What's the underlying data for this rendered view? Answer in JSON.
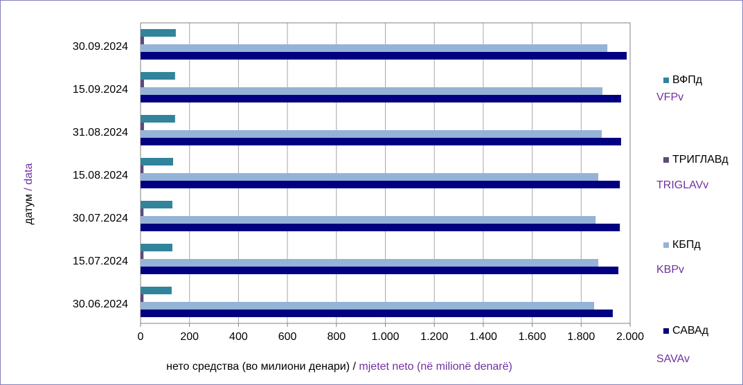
{
  "chart_data": {
    "type": "hbar",
    "categories": [
      "30.06.2024",
      "15.07.2024",
      "30.07.2024",
      "15.08.2024",
      "31.08.2024",
      "15.09.2024",
      "30.09.2024"
    ],
    "series": [
      {
        "name": "ВФПд",
        "subname": "VFPv",
        "color": "#31849b",
        "values": [
          127,
          130,
          130,
          133,
          141,
          141,
          144
        ]
      },
      {
        "name": "ТРИГЛАВд",
        "subname": "TRIGLAVv",
        "color": "#60497a",
        "values": [
          12,
          12,
          12,
          12,
          14,
          14,
          14
        ]
      },
      {
        "name": "КБПд",
        "subname": "KBPv",
        "color": "#95b3d7",
        "values": [
          1853,
          1870,
          1859,
          1870,
          1884,
          1887,
          1907
        ]
      },
      {
        "name": "САВАд",
        "subname": "SAVAv",
        "color": "#000080",
        "values": [
          1929,
          1952,
          1958,
          1958,
          1963,
          1963,
          1986
        ]
      }
    ],
    "xlim": [
      0,
      2000
    ],
    "xticks": [
      0,
      200,
      400,
      600,
      800,
      {
        "value": 1000,
        "label": "1.000"
      },
      {
        "value": 1200,
        "label": "1.200"
      },
      {
        "value": 1400,
        "label": "1.400"
      },
      {
        "value": 1600,
        "label": "1.600"
      },
      {
        "value": 1800,
        "label": "1.800"
      },
      {
        "value": 2000,
        "label": "2.000"
      }
    ],
    "xlabel": "нето средства (во милиони денари) /",
    "xlabel_alt": "mjetet neto (në milionë denarë)",
    "ylabel": "датум",
    "ylabel_alt": "/ data",
    "grid": true
  }
}
